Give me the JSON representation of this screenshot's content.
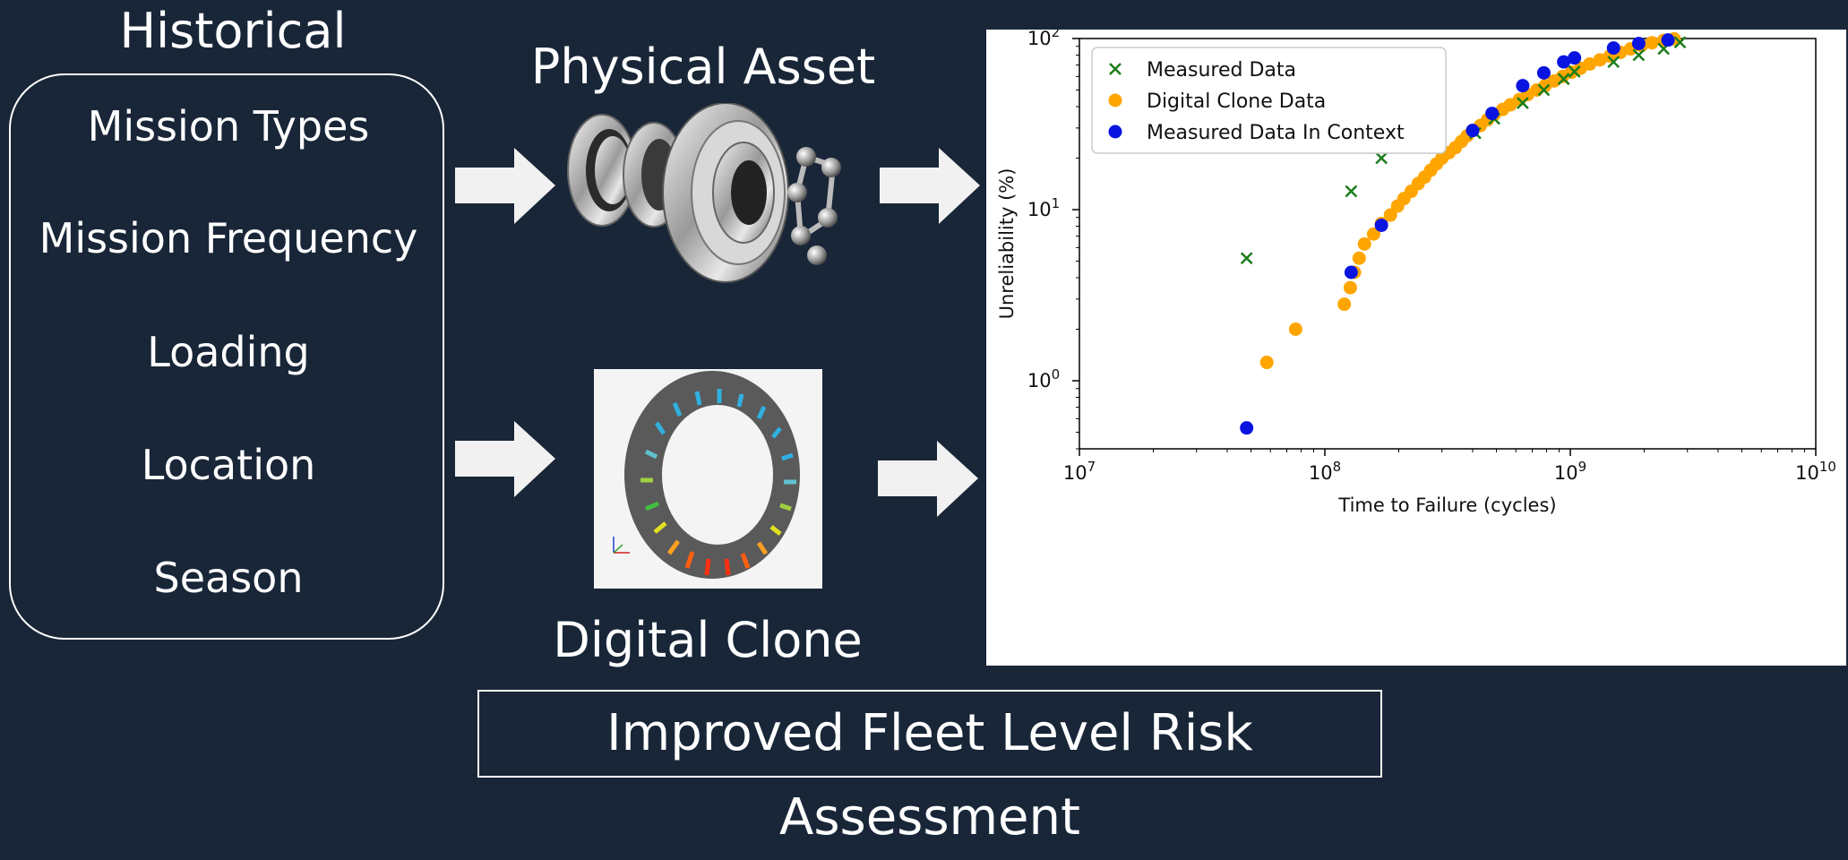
{
  "historical": {
    "title": "Historical",
    "items": [
      "Mission Types",
      "Mission Frequency",
      "Loading",
      "Location",
      "Season"
    ]
  },
  "physical_asset": {
    "title": "Physical Asset",
    "image": "ball-bearing-exploded-view"
  },
  "digital_clone": {
    "title": "Digital Clone",
    "image": "bearing-simulation-render"
  },
  "footer": {
    "label": "Improved Fleet Level Risk Assessment"
  },
  "colors": {
    "background": "#182638",
    "measured": "#1a7d1a",
    "clone": "#ffa500",
    "context": "#0a14e0"
  },
  "chart_data": {
    "type": "scatter",
    "xlabel": "Time to Failure (cycles)",
    "ylabel": "Unreliability (%)",
    "xscale": "log",
    "yscale": "log",
    "xlim": [
      10000000.0,
      10000000000.0
    ],
    "ylim": [
      0.4,
      100
    ],
    "x_ticks": [
      {
        "base": "10",
        "exp": "7"
      },
      {
        "base": "10",
        "exp": "8"
      },
      {
        "base": "10",
        "exp": "9"
      },
      {
        "base": "10",
        "exp": "10"
      }
    ],
    "y_ticks": [
      {
        "base": "10",
        "exp": "0"
      },
      {
        "base": "10",
        "exp": "1"
      },
      {
        "base": "10",
        "exp": "2"
      }
    ],
    "legend_position": "top-left",
    "series": [
      {
        "name": "Measured Data",
        "marker": "x",
        "points": [
          [
            48000000.0,
            5.2
          ],
          [
            128000000.0,
            12.8
          ],
          [
            170000000.0,
            20.0
          ],
          [
            410000000.0,
            28.0
          ],
          [
            490000000.0,
            34.0
          ],
          [
            640000000.0,
            42.0
          ],
          [
            780000000.0,
            50.0
          ],
          [
            940000000.0,
            58.0
          ],
          [
            1040000000.0,
            64.0
          ],
          [
            1500000000.0,
            73.0
          ],
          [
            1900000000.0,
            80.0
          ],
          [
            2400000000.0,
            87.0
          ],
          [
            2800000000.0,
            95.0
          ]
        ]
      },
      {
        "name": "Digital Clone Data",
        "marker": "o",
        "points": [
          [
            58000000.0,
            1.28
          ],
          [
            76000000.0,
            2.0
          ],
          [
            120000000.0,
            2.8
          ],
          [
            127000000.0,
            3.5
          ],
          [
            132000000.0,
            4.3
          ],
          [
            138000000.0,
            5.2
          ],
          [
            145000000.0,
            6.3
          ],
          [
            158000000.0,
            7.2
          ],
          [
            170000000.0,
            8.3
          ],
          [
            185000000.0,
            9.3
          ],
          [
            198000000.0,
            10.5
          ],
          [
            210000000.0,
            11.6
          ],
          [
            225000000.0,
            12.8
          ],
          [
            240000000.0,
            14.2
          ],
          [
            255000000.0,
            15.5
          ],
          [
            270000000.0,
            17.0
          ],
          [
            285000000.0,
            18.5
          ],
          [
            300000000.0,
            20.0
          ],
          [
            320000000.0,
            21.5
          ],
          [
            340000000.0,
            23.0
          ],
          [
            360000000.0,
            25.0
          ],
          [
            380000000.0,
            27.0
          ],
          [
            400000000.0,
            29.0
          ],
          [
            430000000.0,
            31.0
          ],
          [
            460000000.0,
            33.5
          ],
          [
            490000000.0,
            36.0
          ],
          [
            530000000.0,
            38.5
          ],
          [
            570000000.0,
            41.0
          ],
          [
            620000000.0,
            44.0
          ],
          [
            670000000.0,
            47.0
          ],
          [
            730000000.0,
            50.0
          ],
          [
            790000000.0,
            53.0
          ],
          [
            860000000.0,
            56.5
          ],
          [
            930000000.0,
            60.0
          ],
          [
            1010000000.0,
            63.5
          ],
          [
            1100000000.0,
            67.0
          ],
          [
            1200000000.0,
            71.0
          ],
          [
            1320000000.0,
            75.0
          ],
          [
            1450000000.0,
            79.0
          ],
          [
            1600000000.0,
            83.0
          ],
          [
            1760000000.0,
            87.0
          ],
          [
            1950000000.0,
            91.0
          ],
          [
            2150000000.0,
            94.5
          ],
          [
            2400000000.0,
            97.5
          ],
          [
            2650000000.0,
            99.5
          ]
        ]
      },
      {
        "name": "Measured Data In Context",
        "marker": "o",
        "points": [
          [
            48000000.0,
            0.53
          ],
          [
            128000000.0,
            4.3
          ],
          [
            170000000.0,
            8.1
          ],
          [
            400000000.0,
            29.0
          ],
          [
            480000000.0,
            36.5
          ],
          [
            640000000.0,
            53.0
          ],
          [
            780000000.0,
            63.0
          ],
          [
            940000000.0,
            73.0
          ],
          [
            1040000000.0,
            77.0
          ],
          [
            1500000000.0,
            88.0
          ],
          [
            1900000000.0,
            93.5
          ],
          [
            2500000000.0,
            98.0
          ]
        ]
      }
    ]
  }
}
